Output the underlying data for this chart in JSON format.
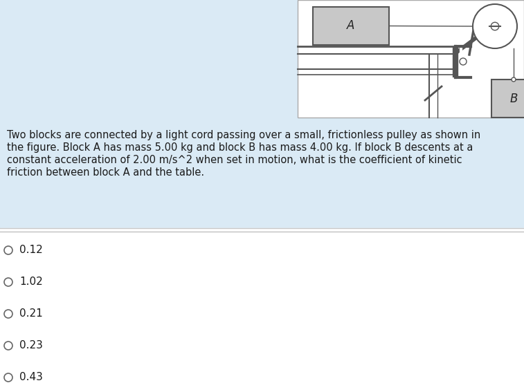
{
  "fig_width": 7.57,
  "fig_height": 5.54,
  "bg_blue": "#daeaf5",
  "bg_white": "#ffffff",
  "line_color": "#555555",
  "block_color": "#c8c8c8",
  "question_text_line1": "Two blocks are connected by a light cord passing over a small, frictionless pulley as shown in",
  "question_text_line2": "the figure. Block A has mass 5.00 kg and block B has mass 4.00 kg. If block B descents at a",
  "question_text_line3": "constant acceleration of 2.00 m/s^2 when set in motion, what is the coefficient of kinetic",
  "question_text_line4": "friction between block A and the table.",
  "options": [
    "0.12",
    "1.02",
    "0.21",
    "0.23",
    "0.43"
  ],
  "question_fontsize": 10.5,
  "option_fontsize": 11
}
